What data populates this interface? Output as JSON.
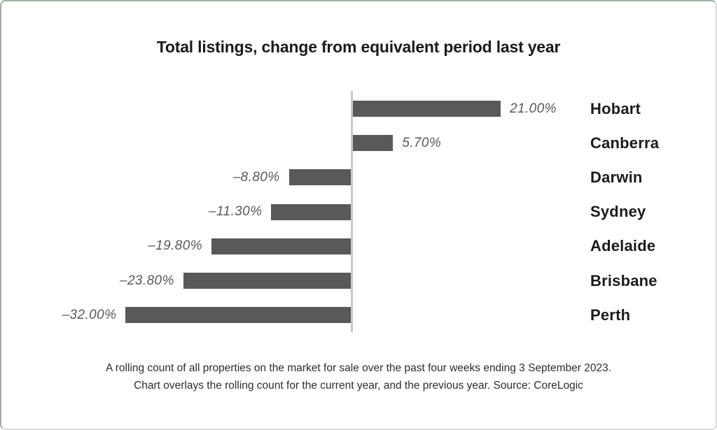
{
  "title": "Total listings, change from equivalent period last year",
  "footer": {
    "line1": "A rolling count of all properties on the market for sale over the past four weeks ending 3 September 2023.",
    "line2": "Chart overlays the rolling count for the current year, and the previous year. Source: CoreLogic"
  },
  "colors": {
    "bar": "#595959",
    "axis": "#c9c9c9",
    "value_label": "#595959",
    "category_label": "#1c1c1c",
    "border_green": "#9fb29f",
    "border_gray": "#d9d9d9"
  },
  "chart_data": {
    "type": "bar",
    "orientation": "horizontal",
    "title": "Total listings, change from equivalent period last year",
    "xlabel": "",
    "ylabel": "",
    "categories": [
      "Hobart",
      "Canberra",
      "Darwin",
      "Sydney",
      "Adelaide",
      "Brisbane",
      "Perth"
    ],
    "values": [
      21.0,
      5.7,
      -8.8,
      -11.3,
      -19.8,
      -23.8,
      -32.0
    ],
    "value_labels": [
      "21.00%",
      "5.70%",
      "–8.80%",
      "–11.30%",
      "–19.80%",
      "–23.80%",
      "–32.00%"
    ],
    "unit": "%",
    "xlim": [
      -32,
      21
    ],
    "baseline_x": 0,
    "grid": false,
    "legend": "none",
    "category_label_position": "right",
    "value_label_position": "bar-end"
  }
}
